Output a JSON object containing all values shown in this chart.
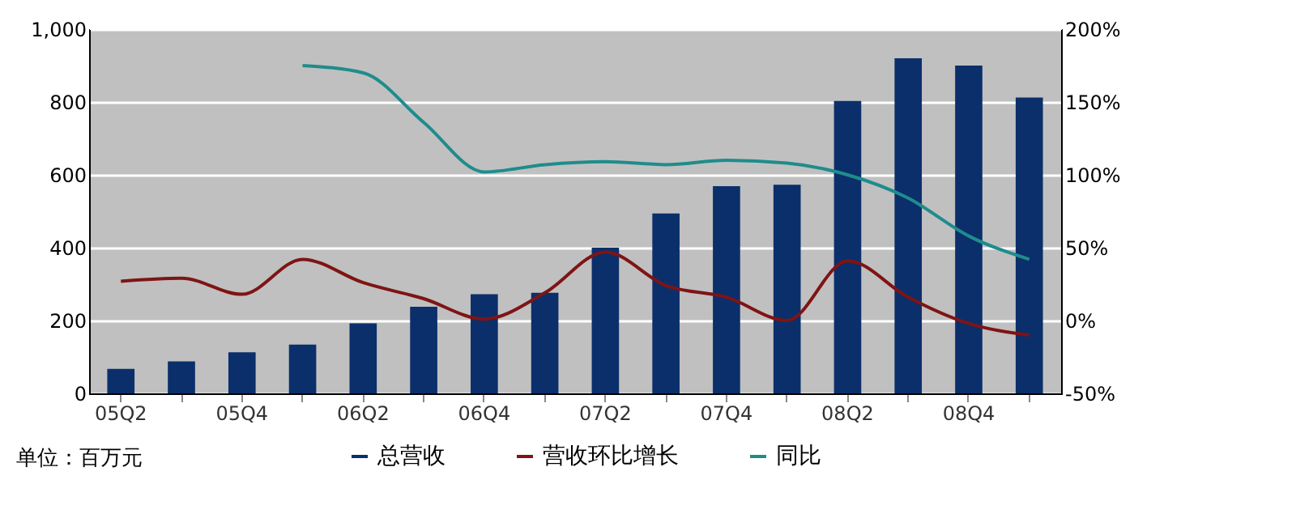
{
  "chart_data": {
    "type": "bar",
    "categories": [
      "05Q2",
      null,
      "05Q4",
      null,
      "06Q2",
      null,
      "06Q4",
      null,
      "07Q2",
      null,
      "07Q4",
      null,
      "08Q2",
      null,
      "08Q4",
      null
    ],
    "series": [
      {
        "name": "总营收",
        "color": "#0b2f6b",
        "values": [
          67,
          88,
          113,
          134,
          192,
          238,
          272,
          276,
          400,
          494,
          569,
          573,
          803,
          920,
          900,
          812
        ]
      },
      {
        "name": "营收环比增长",
        "type": "line",
        "axis": "y2",
        "color": "#7f1414",
        "values": [
          27,
          29,
          18,
          42,
          26,
          15,
          1,
          19,
          47,
          24,
          16,
          0,
          41,
          16,
          -2,
          -10
        ]
      },
      {
        "name": "同比",
        "type": "line",
        "axis": "y2",
        "color": "#1f8c8c",
        "values": [
          null,
          null,
          null,
          175,
          170,
          136,
          102,
          107,
          109,
          107,
          110,
          108,
          100,
          84,
          58,
          42
        ]
      }
    ],
    "ylim": [
      0,
      1000
    ],
    "yticks": [
      0,
      200,
      400,
      600,
      {
        "value": 1000,
        "label": "1,000"
      },
      800
    ],
    "y2lim": [
      -50,
      200
    ],
    "y2ticks": [
      {
        "value": -50,
        "label": "-50%"
      },
      {
        "value": 0,
        "label": "0%"
      },
      {
        "value": 50,
        "label": "50%"
      },
      {
        "value": 100,
        "label": "100%"
      },
      {
        "value": 150,
        "label": "150%"
      },
      {
        "value": 200,
        "label": "200%"
      }
    ],
    "grid": "y",
    "legend": "bottom",
    "annotations": [
      "单位：百万元"
    ]
  }
}
